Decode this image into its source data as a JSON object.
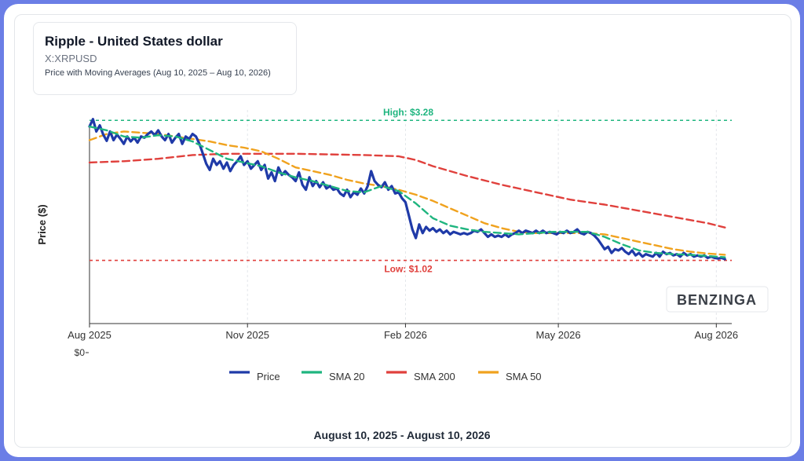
{
  "header": {
    "title": "Ripple - United States dollar",
    "ticker": "X:XRPUSD",
    "subtitle": "Price with Moving Averages (Aug 10, 2025 – Aug 10, 2026)"
  },
  "footer": {
    "caption": "August 10, 2025 - August 10, 2026"
  },
  "watermark": "BENZINGA",
  "colors": {
    "price": "#1f3aa8",
    "sma20": "#1fb57f",
    "sma200": "#e0403c",
    "sma50": "#f0a21e",
    "high": "#1fb57f",
    "low": "#e0403c"
  },
  "chart_data": {
    "type": "line",
    "ylabel": "Price ($)",
    "xlabel": "",
    "x_ticks": [
      "Aug 2025",
      "Nov 2025",
      "Feb 2026",
      "May 2026",
      "Aug 2026"
    ],
    "x_tick_days": [
      0,
      92,
      184,
      273,
      365
    ],
    "x_range_days": [
      0,
      374
    ],
    "y_ticks": [
      {
        "value": 0,
        "label": "$0"
      }
    ],
    "ylim": [
      0,
      3.6
    ],
    "grid": true,
    "legend_position": "bottom",
    "reference_lines": [
      {
        "name": "High",
        "label": "High: $3.28",
        "value": 3.28
      },
      {
        "name": "Low",
        "label": "Low: $1.02",
        "value": 1.02
      }
    ],
    "series": [
      {
        "name": "Price",
        "points": [
          [
            0,
            3.18
          ],
          [
            2,
            3.3
          ],
          [
            4,
            3.1
          ],
          [
            6,
            3.2
          ],
          [
            8,
            3.05
          ],
          [
            10,
            2.95
          ],
          [
            12,
            3.1
          ],
          [
            14,
            2.96
          ],
          [
            16,
            3.05
          ],
          [
            18,
            2.98
          ],
          [
            20,
            2.9
          ],
          [
            22,
            3.02
          ],
          [
            24,
            2.94
          ],
          [
            26,
            3.0
          ],
          [
            28,
            2.92
          ],
          [
            30,
            3.02
          ],
          [
            32,
            3.0
          ],
          [
            34,
            3.06
          ],
          [
            36,
            3.1
          ],
          [
            38,
            3.04
          ],
          [
            40,
            3.12
          ],
          [
            42,
            3.02
          ],
          [
            44,
            2.96
          ],
          [
            46,
            3.06
          ],
          [
            48,
            2.92
          ],
          [
            50,
            3.0
          ],
          [
            52,
            3.06
          ],
          [
            54,
            2.9
          ],
          [
            56,
            3.02
          ],
          [
            58,
            2.98
          ],
          [
            60,
            3.06
          ],
          [
            62,
            3.02
          ],
          [
            64,
            2.9
          ],
          [
            66,
            2.74
          ],
          [
            68,
            2.58
          ],
          [
            70,
            2.48
          ],
          [
            72,
            2.66
          ],
          [
            74,
            2.56
          ],
          [
            76,
            2.62
          ],
          [
            78,
            2.5
          ],
          [
            80,
            2.6
          ],
          [
            82,
            2.46
          ],
          [
            84,
            2.56
          ],
          [
            86,
            2.62
          ],
          [
            88,
            2.7
          ],
          [
            90,
            2.56
          ],
          [
            92,
            2.62
          ],
          [
            94,
            2.5
          ],
          [
            96,
            2.56
          ],
          [
            98,
            2.62
          ],
          [
            100,
            2.48
          ],
          [
            102,
            2.56
          ],
          [
            104,
            2.34
          ],
          [
            106,
            2.44
          ],
          [
            108,
            2.3
          ],
          [
            110,
            2.52
          ],
          [
            112,
            2.4
          ],
          [
            114,
            2.46
          ],
          [
            116,
            2.4
          ],
          [
            118,
            2.36
          ],
          [
            120,
            2.3
          ],
          [
            122,
            2.44
          ],
          [
            124,
            2.24
          ],
          [
            126,
            2.16
          ],
          [
            128,
            2.36
          ],
          [
            130,
            2.22
          ],
          [
            132,
            2.3
          ],
          [
            134,
            2.2
          ],
          [
            136,
            2.28
          ],
          [
            138,
            2.18
          ],
          [
            140,
            2.22
          ],
          [
            142,
            2.16
          ],
          [
            144,
            2.18
          ],
          [
            146,
            2.1
          ],
          [
            148,
            2.06
          ],
          [
            150,
            2.16
          ],
          [
            152,
            2.04
          ],
          [
            154,
            2.12
          ],
          [
            156,
            2.08
          ],
          [
            158,
            2.18
          ],
          [
            160,
            2.1
          ],
          [
            162,
            2.22
          ],
          [
            164,
            2.46
          ],
          [
            166,
            2.3
          ],
          [
            168,
            2.24
          ],
          [
            170,
            2.2
          ],
          [
            172,
            2.28
          ],
          [
            174,
            2.16
          ],
          [
            176,
            2.22
          ],
          [
            178,
            2.1
          ],
          [
            180,
            2.12
          ],
          [
            182,
            2.02
          ],
          [
            184,
            1.96
          ],
          [
            186,
            1.74
          ],
          [
            188,
            1.52
          ],
          [
            190,
            1.38
          ],
          [
            192,
            1.6
          ],
          [
            194,
            1.46
          ],
          [
            196,
            1.56
          ],
          [
            198,
            1.5
          ],
          [
            200,
            1.54
          ],
          [
            202,
            1.48
          ],
          [
            204,
            1.52
          ],
          [
            206,
            1.46
          ],
          [
            208,
            1.5
          ],
          [
            210,
            1.44
          ],
          [
            212,
            1.48
          ],
          [
            214,
            1.46
          ],
          [
            216,
            1.44
          ],
          [
            218,
            1.46
          ],
          [
            220,
            1.44
          ],
          [
            222,
            1.46
          ],
          [
            224,
            1.5
          ],
          [
            226,
            1.48
          ],
          [
            228,
            1.52
          ],
          [
            230,
            1.46
          ],
          [
            232,
            1.4
          ],
          [
            234,
            1.44
          ],
          [
            236,
            1.4
          ],
          [
            238,
            1.42
          ],
          [
            240,
            1.4
          ],
          [
            242,
            1.44
          ],
          [
            244,
            1.4
          ],
          [
            246,
            1.44
          ],
          [
            248,
            1.46
          ],
          [
            250,
            1.5
          ],
          [
            252,
            1.46
          ],
          [
            254,
            1.5
          ],
          [
            256,
            1.48
          ],
          [
            258,
            1.46
          ],
          [
            260,
            1.5
          ],
          [
            262,
            1.46
          ],
          [
            264,
            1.5
          ],
          [
            266,
            1.46
          ],
          [
            268,
            1.48
          ],
          [
            270,
            1.46
          ],
          [
            272,
            1.44
          ],
          [
            274,
            1.48
          ],
          [
            276,
            1.46
          ],
          [
            278,
            1.5
          ],
          [
            280,
            1.46
          ],
          [
            282,
            1.48
          ],
          [
            284,
            1.52
          ],
          [
            286,
            1.46
          ],
          [
            288,
            1.44
          ],
          [
            290,
            1.48
          ],
          [
            292,
            1.46
          ],
          [
            294,
            1.42
          ],
          [
            296,
            1.36
          ],
          [
            298,
            1.28
          ],
          [
            300,
            1.2
          ],
          [
            302,
            1.24
          ],
          [
            304,
            1.14
          ],
          [
            306,
            1.2
          ],
          [
            308,
            1.18
          ],
          [
            310,
            1.22
          ],
          [
            312,
            1.16
          ],
          [
            314,
            1.12
          ],
          [
            316,
            1.18
          ],
          [
            318,
            1.1
          ],
          [
            320,
            1.14
          ],
          [
            322,
            1.08
          ],
          [
            324,
            1.12
          ],
          [
            326,
            1.1
          ],
          [
            328,
            1.08
          ],
          [
            330,
            1.14
          ],
          [
            332,
            1.08
          ],
          [
            334,
            1.16
          ],
          [
            336,
            1.12
          ],
          [
            338,
            1.14
          ],
          [
            340,
            1.1
          ],
          [
            342,
            1.12
          ],
          [
            344,
            1.08
          ],
          [
            346,
            1.14
          ],
          [
            348,
            1.1
          ],
          [
            350,
            1.12
          ],
          [
            352,
            1.08
          ],
          [
            354,
            1.1
          ],
          [
            356,
            1.08
          ],
          [
            358,
            1.1
          ],
          [
            360,
            1.06
          ],
          [
            362,
            1.08
          ],
          [
            364,
            1.06
          ],
          [
            366,
            1.05
          ],
          [
            368,
            1.06
          ],
          [
            370,
            1.04
          ]
        ]
      },
      {
        "name": "SMA 20",
        "points": [
          [
            0,
            3.18
          ],
          [
            10,
            3.12
          ],
          [
            20,
            3.02
          ],
          [
            30,
            3.0
          ],
          [
            40,
            3.04
          ],
          [
            50,
            3.02
          ],
          [
            60,
            2.94
          ],
          [
            70,
            2.8
          ],
          [
            80,
            2.66
          ],
          [
            90,
            2.6
          ],
          [
            100,
            2.54
          ],
          [
            110,
            2.44
          ],
          [
            120,
            2.36
          ],
          [
            130,
            2.3
          ],
          [
            140,
            2.22
          ],
          [
            150,
            2.14
          ],
          [
            160,
            2.12
          ],
          [
            170,
            2.22
          ],
          [
            180,
            2.14
          ],
          [
            190,
            1.94
          ],
          [
            200,
            1.7
          ],
          [
            210,
            1.58
          ],
          [
            220,
            1.52
          ],
          [
            230,
            1.48
          ],
          [
            240,
            1.46
          ],
          [
            250,
            1.44
          ],
          [
            260,
            1.46
          ],
          [
            270,
            1.48
          ],
          [
            280,
            1.48
          ],
          [
            290,
            1.48
          ],
          [
            300,
            1.4
          ],
          [
            310,
            1.28
          ],
          [
            320,
            1.18
          ],
          [
            330,
            1.14
          ],
          [
            340,
            1.12
          ],
          [
            350,
            1.11
          ],
          [
            360,
            1.09
          ],
          [
            370,
            1.07
          ]
        ]
      },
      {
        "name": "SMA 50",
        "points": [
          [
            0,
            2.96
          ],
          [
            10,
            3.06
          ],
          [
            20,
            3.1
          ],
          [
            30,
            3.08
          ],
          [
            40,
            3.06
          ],
          [
            50,
            3.02
          ],
          [
            60,
            2.98
          ],
          [
            70,
            2.94
          ],
          [
            80,
            2.88
          ],
          [
            90,
            2.84
          ],
          [
            100,
            2.78
          ],
          [
            110,
            2.66
          ],
          [
            120,
            2.52
          ],
          [
            130,
            2.46
          ],
          [
            140,
            2.4
          ],
          [
            150,
            2.32
          ],
          [
            160,
            2.26
          ],
          [
            170,
            2.22
          ],
          [
            180,
            2.16
          ],
          [
            190,
            2.08
          ],
          [
            200,
            1.98
          ],
          [
            210,
            1.86
          ],
          [
            220,
            1.74
          ],
          [
            230,
            1.62
          ],
          [
            240,
            1.54
          ],
          [
            250,
            1.48
          ],
          [
            260,
            1.46
          ],
          [
            270,
            1.46
          ],
          [
            280,
            1.46
          ],
          [
            290,
            1.46
          ],
          [
            300,
            1.44
          ],
          [
            310,
            1.38
          ],
          [
            320,
            1.32
          ],
          [
            330,
            1.26
          ],
          [
            340,
            1.2
          ],
          [
            350,
            1.16
          ],
          [
            360,
            1.13
          ],
          [
            370,
            1.11
          ]
        ]
      },
      {
        "name": "SMA 200",
        "points": [
          [
            0,
            2.6
          ],
          [
            20,
            2.62
          ],
          [
            40,
            2.66
          ],
          [
            60,
            2.72
          ],
          [
            80,
            2.74
          ],
          [
            100,
            2.74
          ],
          [
            120,
            2.74
          ],
          [
            140,
            2.73
          ],
          [
            160,
            2.72
          ],
          [
            180,
            2.7
          ],
          [
            190,
            2.64
          ],
          [
            200,
            2.54
          ],
          [
            220,
            2.38
          ],
          [
            240,
            2.24
          ],
          [
            260,
            2.12
          ],
          [
            280,
            2.0
          ],
          [
            300,
            1.92
          ],
          [
            320,
            1.82
          ],
          [
            340,
            1.72
          ],
          [
            360,
            1.62
          ],
          [
            370,
            1.55
          ]
        ]
      }
    ]
  }
}
